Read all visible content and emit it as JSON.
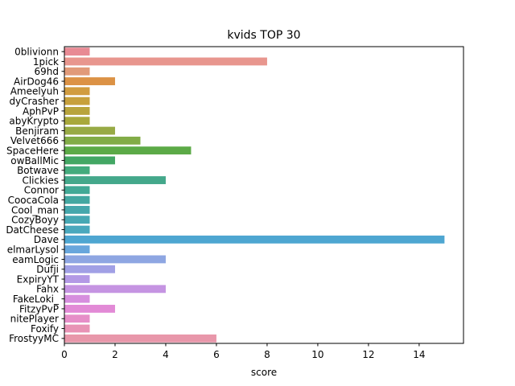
{
  "chart_data": {
    "type": "bar",
    "orientation": "horizontal",
    "title": "kvids TOP 30",
    "xlabel": "score",
    "ylabel": "",
    "xlim": [
      0,
      15.75
    ],
    "xticks": [
      0,
      2,
      4,
      6,
      8,
      10,
      12,
      14
    ],
    "grid": false,
    "categories": [
      "0blivionn",
      "1pick",
      "69hd",
      "AirDog46",
      "Ameelyuh",
      "dyCrasher",
      "AphPvP",
      "abyKrypto",
      "Benjiram",
      "Velvet666",
      "SpaceHere",
      "owBallMic",
      "Botwave",
      "Clickies",
      "Connor",
      "CoocaCola",
      "Cool_man",
      "CozyBoyy",
      "DatCheese",
      "Dave",
      "elmarLysol",
      "eamLogic",
      "Dufji",
      "ExpiryYT",
      "Fahx",
      "FakeLoki_",
      "FitzyPvP",
      "nitePlayer",
      "Foxify",
      "FrostyyMC"
    ],
    "values": [
      1,
      8,
      1,
      2,
      1,
      1,
      1,
      1,
      2,
      3,
      5,
      2,
      1,
      4,
      1,
      1,
      1,
      1,
      1,
      15,
      1,
      4,
      2,
      1,
      4,
      1,
      2,
      1,
      1,
      6
    ],
    "colors": [
      "#e88a94",
      "#e8968e",
      "#e19a79",
      "#dc9245",
      "#d19c3f",
      "#c7a03c",
      "#b8a43c",
      "#a8a83b",
      "#98aa45",
      "#82ac47",
      "#5caa47",
      "#43a764",
      "#43ab7d",
      "#44a88b",
      "#42a996",
      "#43a7a1",
      "#45a7ac",
      "#47a8b4",
      "#4aa8bd",
      "#4ea6d1",
      "#68a6dc",
      "#8ea6e2",
      "#a1a0e5",
      "#b399e5",
      "#c594e2",
      "#d68ede",
      "#e28ad6",
      "#e68ec8",
      "#e893b5",
      "#e897aa"
    ]
  }
}
